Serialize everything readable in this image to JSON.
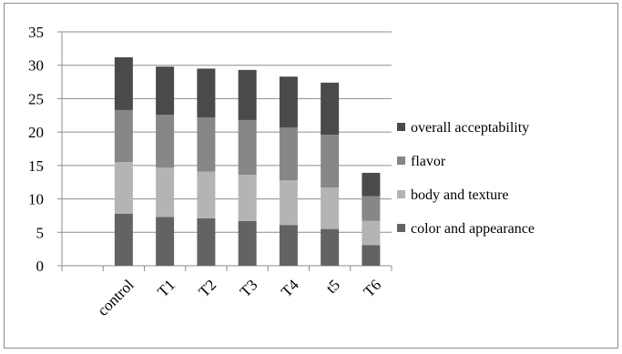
{
  "chart_data": {
    "type": "bar",
    "stacked": true,
    "categories": [
      "control",
      "T1",
      "T2",
      "T3",
      "T4",
      "t5",
      "T6"
    ],
    "series": [
      {
        "name": "color and appearance",
        "color": "#636363",
        "values": [
          7.8,
          7.3,
          7.1,
          6.7,
          6.1,
          5.5,
          3.1
        ]
      },
      {
        "name": "body and texture",
        "color": "#b4b4b4",
        "values": [
          7.7,
          7.4,
          7.0,
          6.9,
          6.7,
          6.2,
          3.6
        ]
      },
      {
        "name": "flavor",
        "color": "#878787",
        "values": [
          7.8,
          7.9,
          8.1,
          8.2,
          7.9,
          7.9,
          3.7
        ]
      },
      {
        "name": "overall acceptability",
        "color": "#4a4a4a",
        "values": [
          7.9,
          7.2,
          7.3,
          7.5,
          7.6,
          7.8,
          3.5
        ]
      }
    ],
    "ylim": [
      0,
      35
    ],
    "yticks": [
      0,
      5,
      10,
      15,
      20,
      25,
      30,
      35
    ],
    "grid": true,
    "legend_position": "right",
    "legend_order": [
      "overall acceptability",
      "flavor",
      "body and texture",
      "color and appearance"
    ],
    "title": "",
    "xlabel": "",
    "ylabel": ""
  }
}
